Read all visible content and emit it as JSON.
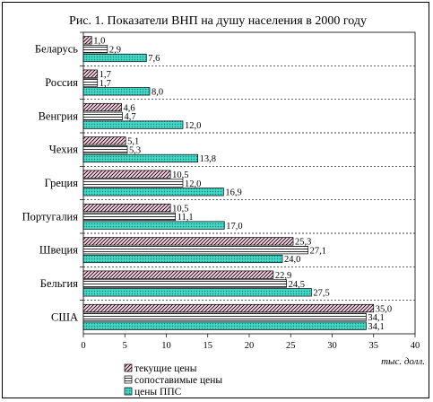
{
  "chart_data": {
    "type": "bar",
    "orientation": "horizontal",
    "title": "Рис. 1. Показатели ВНП на душу населения в 2000 году",
    "categories": [
      "Беларусь",
      "Россия",
      "Венгрия",
      "Чехия",
      "Греция",
      "Португалия",
      "Швеция",
      "Бельгия",
      "США"
    ],
    "series": [
      {
        "name": "текущие цены",
        "pattern": "diagonal-hatch",
        "color": "#000000",
        "values": [
          1.0,
          1.7,
          4.6,
          5.1,
          10.5,
          10.5,
          25.3,
          22.9,
          35.0
        ],
        "labels": [
          "1,0",
          "1,7",
          "4,6",
          "5,1",
          "10,5",
          "10,5",
          "25,3",
          "22,9",
          "35,0"
        ]
      },
      {
        "name": "сопоставимые цены",
        "pattern": "horizontal-lines",
        "color": "#000000",
        "values": [
          2.9,
          1.7,
          4.7,
          5.3,
          12.0,
          11.1,
          27.1,
          24.5,
          34.1
        ],
        "labels": [
          "2,9",
          "1,7",
          "4,7",
          "5,3",
          "12,0",
          "11,1",
          "27,1",
          "24,5",
          "34,1"
        ]
      },
      {
        "name": "цены ППС",
        "pattern": "dotted-teal",
        "color": "#33ccbb",
        "values": [
          7.6,
          8.0,
          12.0,
          13.8,
          16.9,
          17.0,
          24.0,
          27.5,
          34.1
        ],
        "labels": [
          "7,6",
          "8,0",
          "12,0",
          "13,8",
          "16,9",
          "17,0",
          "24,0",
          "27,5",
          "34,1"
        ]
      }
    ],
    "xlim": [
      0,
      40
    ],
    "xticks": [
      "0",
      "5",
      "10",
      "15",
      "20",
      "25",
      "30",
      "35",
      "40"
    ],
    "xlabel": "тыс. долл.",
    "grid": "dashed separators between categories",
    "legend_position": "bottom-center"
  }
}
